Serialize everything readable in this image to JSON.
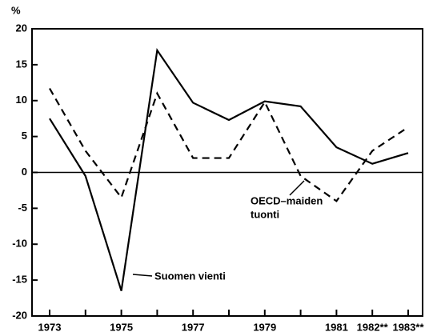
{
  "chart_data": {
    "type": "line",
    "y_label": "%",
    "categories": [
      "1973",
      null,
      "1975",
      null,
      "1977",
      null,
      "1979",
      null,
      "1981",
      "1982**",
      "1983**"
    ],
    "series": [
      {
        "color": "#000000",
        "dashed": false,
        "values": [
          7.5,
          -0.5,
          -16.5,
          17,
          9.7,
          7.3,
          9.9,
          9.2,
          3.5,
          1.2,
          2.7
        ]
      },
      {
        "color": "#000000",
        "dashed": true,
        "values": [
          11.7,
          3,
          -3.5,
          11,
          2,
          2,
          9.8,
          -0.5,
          -4,
          3,
          6.3
        ]
      }
    ],
    "annotations": [
      {
        "text": "Suomen vienti"
      },
      {
        "text": "OECD–maiden"
      },
      {
        "text": "tuonti"
      }
    ],
    "ylim": [
      -20,
      20
    ],
    "yticks": [
      20,
      15,
      10,
      5,
      0,
      -5,
      -10,
      -15,
      -20
    ],
    "grid": false,
    "zero_line": true
  }
}
